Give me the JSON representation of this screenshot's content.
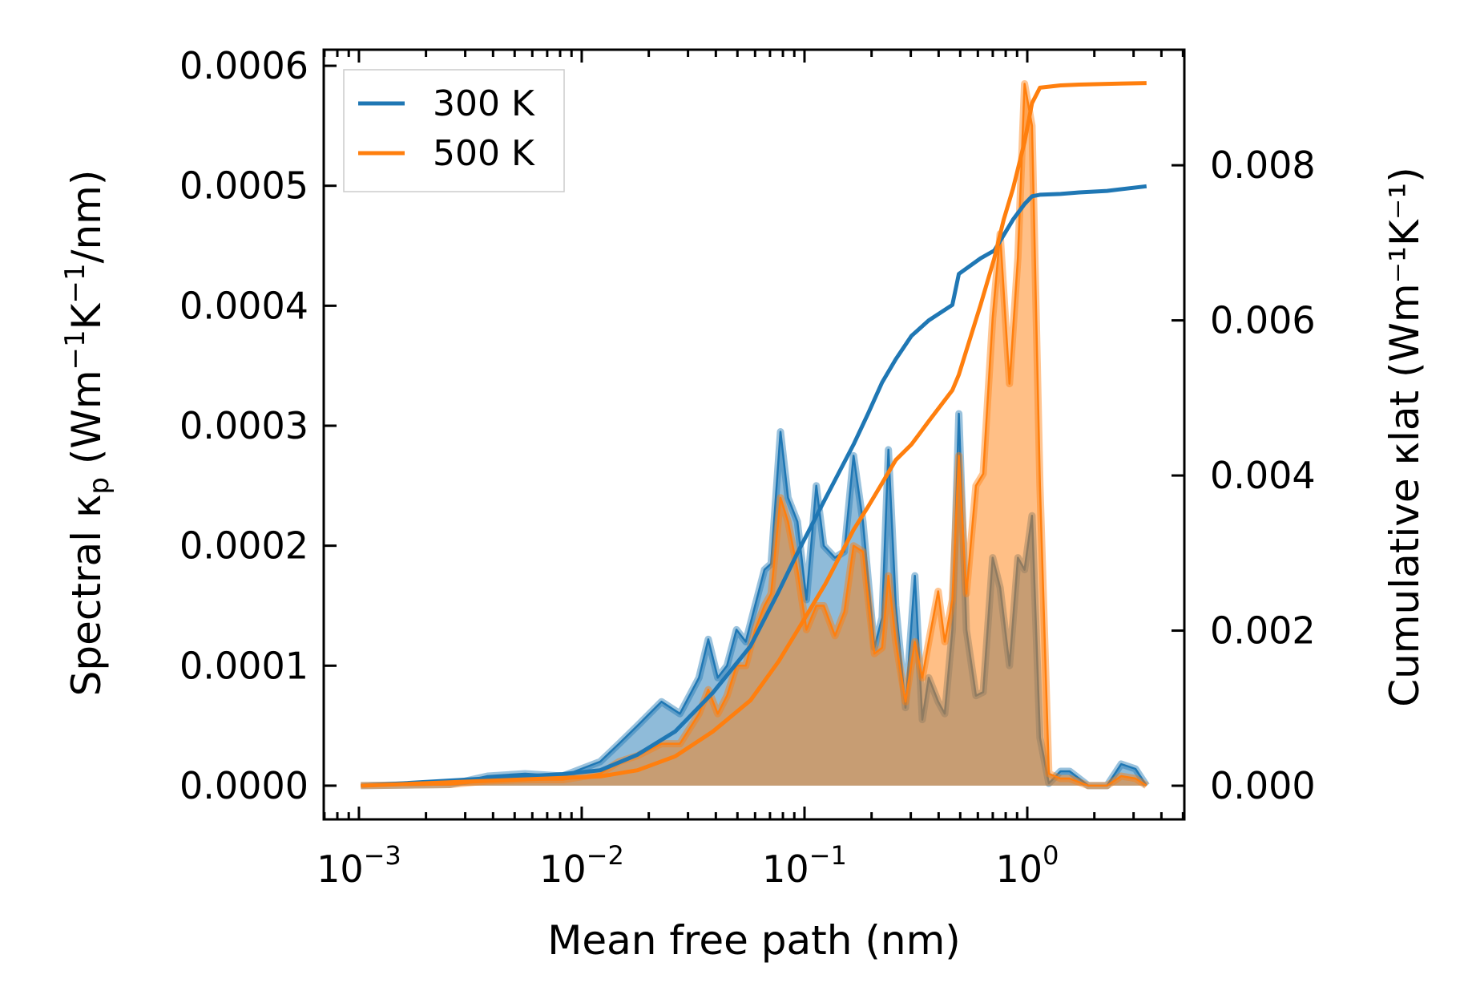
{
  "chart_data": {
    "type": "area+line",
    "xlabel": "Mean free path (nm)",
    "ylabel_left": "Spectral κp (Wm⁻¹K⁻¹/nm)",
    "ylabel_right": "Cumulative κlat (Wm⁻¹K⁻¹)",
    "xscale": "log",
    "xlim": [
      0.000695,
      5.07
    ],
    "ylim_left": [
      -2.81e-05,
      0.0006134
    ],
    "ylim_right": [
      -0.000434,
      0.00949
    ],
    "x_ticks": [
      {
        "value": 0.001,
        "label": "10",
        "exp": "−3"
      },
      {
        "value": 0.01,
        "label": "10",
        "exp": "−2"
      },
      {
        "value": 0.1,
        "label": "10",
        "exp": "−1"
      },
      {
        "value": 1,
        "label": "10",
        "exp": "0"
      }
    ],
    "y_left_ticks": [
      {
        "value": 0,
        "label": "0.0000"
      },
      {
        "value": 0.0001,
        "label": "0.0001"
      },
      {
        "value": 0.0002,
        "label": "0.0002"
      },
      {
        "value": 0.0003,
        "label": "0.0003"
      },
      {
        "value": 0.0004,
        "label": "0.0004"
      },
      {
        "value": 0.0005,
        "label": "0.0005"
      },
      {
        "value": 0.0006,
        "label": "0.0006"
      }
    ],
    "y_right_ticks": [
      {
        "value": 0,
        "label": "0.000"
      },
      {
        "value": 0.002,
        "label": "0.002"
      },
      {
        "value": 0.004,
        "label": "0.004"
      },
      {
        "value": 0.006,
        "label": "0.006"
      },
      {
        "value": 0.008,
        "label": "0.008"
      }
    ],
    "legend": {
      "placement": "top-left",
      "entries": [
        {
          "label": "300 K",
          "color": "#1f77b4"
        },
        {
          "label": "500 K",
          "color": "#ff7f0e"
        }
      ]
    },
    "spectral_x": [
      0.00102,
      0.00256,
      0.00378,
      0.00557,
      0.00821,
      0.0121,
      0.0147,
      0.0178,
      0.0228,
      0.0276,
      0.0336,
      0.037,
      0.0408,
      0.0449,
      0.0495,
      0.0545,
      0.06,
      0.0661,
      0.0708,
      0.078,
      0.0843,
      0.0929,
      0.102,
      0.113,
      0.122,
      0.137,
      0.151,
      0.166,
      0.183,
      0.206,
      0.223,
      0.238,
      0.257,
      0.284,
      0.313,
      0.338,
      0.361,
      0.398,
      0.426,
      0.461,
      0.493,
      0.533,
      0.588,
      0.634,
      0.699,
      0.755,
      0.832,
      0.908,
      0.972,
      1.05,
      1.14,
      1.25,
      1.41,
      1.55,
      1.88,
      2.28,
      2.64,
      3.06,
      3.43
    ],
    "cumulative_x": [
      0.00102,
      0.00821,
      0.0121,
      0.0178,
      0.0263,
      0.0388,
      0.0572,
      0.0764,
      0.0929,
      0.124,
      0.166,
      0.193,
      0.223,
      0.257,
      0.302,
      0.361,
      0.461,
      0.493,
      0.617,
      0.711,
      0.784,
      0.863,
      0.972,
      1.05,
      1.14,
      1.41,
      1.71,
      2.28,
      3.43
    ],
    "series": [
      {
        "name": "300 K",
        "color": "#1f77b4",
        "spectral": [
          0,
          1e-06,
          8e-06,
          1e-05,
          8e-06,
          2e-05,
          3.5e-05,
          5e-05,
          7e-05,
          6e-05,
          9e-05,
          0.000122,
          9e-05,
          0.0001,
          0.00013,
          0.00012,
          0.00015,
          0.00018,
          0.000185,
          0.000295,
          0.00024,
          0.00022,
          0.000155,
          0.00025,
          0.0002,
          0.00019,
          0.000195,
          0.000275,
          0.00022,
          0.000115,
          0.00014,
          0.00028,
          0.00015,
          6.5e-05,
          0.000175,
          5.5e-05,
          9e-05,
          7e-05,
          6e-05,
          0.00013,
          0.00031,
          0.00013,
          7.5e-05,
          7.8e-05,
          0.00019,
          0.000165,
          0.0001,
          0.00019,
          0.00018,
          0.000225,
          4e-05,
          2e-06,
          1.2e-05,
          1.2e-05,
          0,
          0,
          1.8e-05,
          1.4e-05,
          0
        ],
        "cumulative": [
          0,
          0.00015,
          0.0002,
          0.0004,
          0.0007,
          0.0012,
          0.0018,
          0.0025,
          0.003,
          0.0037,
          0.0044,
          0.0048,
          0.0052,
          0.0055,
          0.0058,
          0.006,
          0.0062,
          0.0066,
          0.0068,
          0.0069,
          0.0071,
          0.0073,
          0.0075,
          0.0076,
          0.00762,
          0.00763,
          0.00765,
          0.00767,
          0.00773
        ]
      },
      {
        "name": "500 K",
        "color": "#ff7f0e",
        "spectral": [
          0,
          1e-06,
          4e-06,
          5e-06,
          5e-06,
          1e-05,
          2e-05,
          2.5e-05,
          3.5e-05,
          3.5e-05,
          6e-05,
          8e-05,
          6e-05,
          7.5e-05,
          0.0001,
          0.0001,
          0.00013,
          0.00015,
          0.00016,
          0.00024,
          0.00022,
          0.00018,
          0.00013,
          0.00015,
          0.00015,
          0.000125,
          0.000145,
          0.0002,
          0.000195,
          0.00011,
          0.000115,
          0.000175,
          0.00012,
          7e-05,
          0.00012,
          9e-05,
          0.00012,
          0.000162,
          0.00012,
          0.000155,
          0.000275,
          0.00016,
          0.00025,
          0.00026,
          0.00039,
          0.00046,
          0.000335,
          0.00044,
          0.000585,
          0.00055,
          0.00025,
          1e-05,
          6e-06,
          6e-06,
          0,
          0,
          8e-06,
          6e-06,
          0
        ],
        "cumulative": [
          0,
          0.0001,
          0.00012,
          0.0002,
          0.00038,
          0.0007,
          0.0011,
          0.0016,
          0.002,
          0.0026,
          0.0033,
          0.0036,
          0.0039,
          0.0042,
          0.0044,
          0.0047,
          0.0051,
          0.0053,
          0.0062,
          0.0068,
          0.0073,
          0.0077,
          0.0083,
          0.0088,
          0.009,
          0.00903,
          0.00904,
          0.00905,
          0.00906
        ]
      }
    ]
  }
}
